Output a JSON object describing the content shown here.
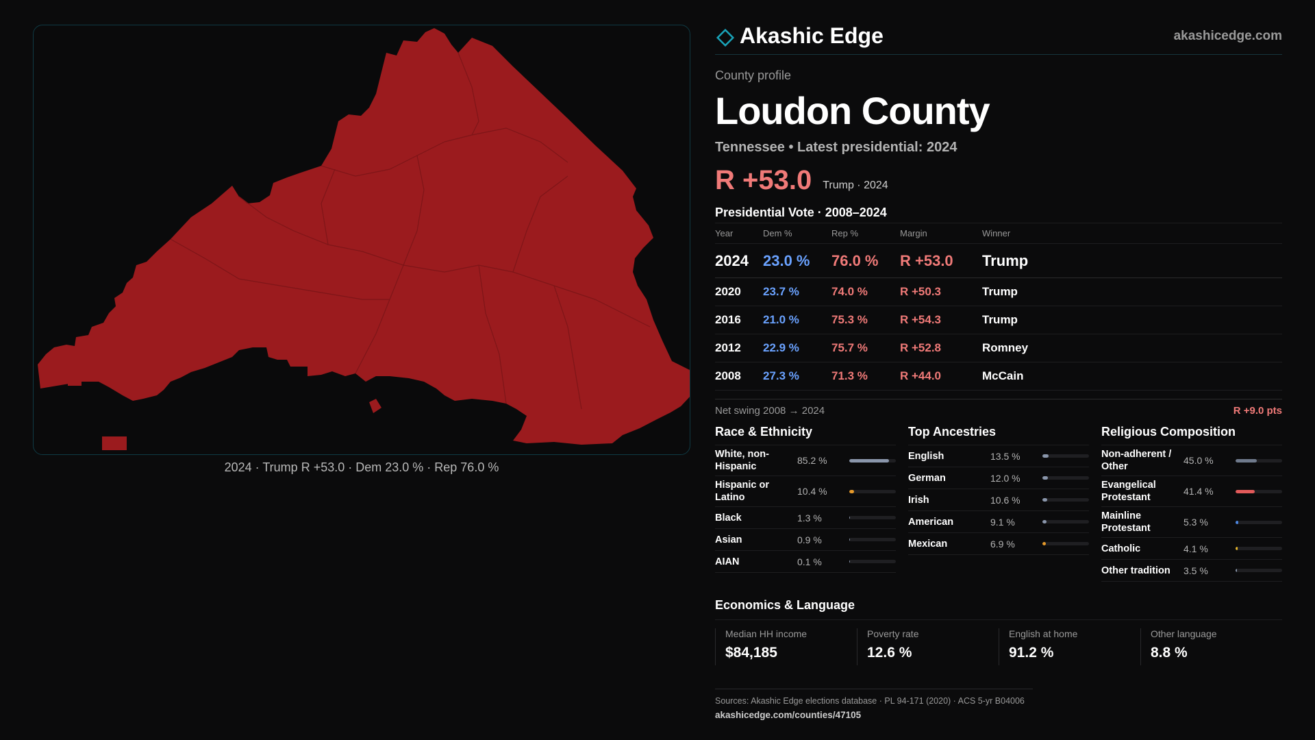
{
  "map": {
    "caption": "2024 · Trump R +53.0 · Dem 23.0 % · Rep 76.0 %",
    "fill_color": "#9b1b1e"
  },
  "brand": {
    "name": "Akashic Edge",
    "url": "akashicedge.com",
    "accent": "#19a3b8"
  },
  "profile": {
    "eyebrow": "County profile",
    "title": "Loudon County",
    "subtitle": "Tennessee • Latest presidential: 2024",
    "headline_margin": "R +53.0",
    "headline_meta": "Trump · 2024"
  },
  "votes": {
    "title": "Presidential Vote · 2008–2024",
    "headers": {
      "year": "Year",
      "dem": "Dem %",
      "rep": "Rep %",
      "margin": "Margin",
      "winner": "Winner"
    },
    "rows": [
      {
        "year": "2024",
        "dem": "23.0 %",
        "rep": "76.0 %",
        "margin": "R +53.0",
        "winner": "Trump"
      },
      {
        "year": "2020",
        "dem": "23.7 %",
        "rep": "74.0 %",
        "margin": "R +50.3",
        "winner": "Trump"
      },
      {
        "year": "2016",
        "dem": "21.0 %",
        "rep": "75.3 %",
        "margin": "R +54.3",
        "winner": "Trump"
      },
      {
        "year": "2012",
        "dem": "22.9 %",
        "rep": "75.7 %",
        "margin": "R +52.8",
        "winner": "Romney"
      },
      {
        "year": "2008",
        "dem": "27.3 %",
        "rep": "71.3 %",
        "margin": "R +44.0",
        "winner": "McCain"
      }
    ],
    "swing_label": "Net swing 2008 → 2024",
    "swing_value": "R +9.0 pts"
  },
  "race": {
    "title": "Race & Ethnicity",
    "items": [
      {
        "name": "White, non-Hispanic",
        "value": "85.2 %",
        "pct": 85.2,
        "color": "#8a96ab"
      },
      {
        "name": "Hispanic or Latino",
        "value": "10.4 %",
        "pct": 10.4,
        "color": "#e69a2a"
      },
      {
        "name": "Black",
        "value": "1.3 %",
        "pct": 1.3,
        "color": "#8a96ab"
      },
      {
        "name": "Asian",
        "value": "0.9 %",
        "pct": 0.9,
        "color": "#8a96ab"
      },
      {
        "name": "AIAN",
        "value": "0.1 %",
        "pct": 0.1,
        "color": "#8a96ab"
      }
    ]
  },
  "ancestry": {
    "title": "Top Ancestries",
    "items": [
      {
        "name": "English",
        "value": "13.5 %",
        "pct": 13.5,
        "color": "#8a96ab"
      },
      {
        "name": "German",
        "value": "12.0 %",
        "pct": 12.0,
        "color": "#8a96ab"
      },
      {
        "name": "Irish",
        "value": "10.6 %",
        "pct": 10.6,
        "color": "#8a96ab"
      },
      {
        "name": "American",
        "value": "9.1 %",
        "pct": 9.1,
        "color": "#8a96ab"
      },
      {
        "name": "Mexican",
        "value": "6.9 %",
        "pct": 6.9,
        "color": "#e69a2a"
      }
    ]
  },
  "religion": {
    "title": "Religious Composition",
    "items": [
      {
        "name": "Non-adherent / Other",
        "value": "45.0 %",
        "pct": 45.0,
        "color": "#6f7a8c"
      },
      {
        "name": "Evangelical Protestant",
        "value": "41.4 %",
        "pct": 41.4,
        "color": "#e25a5a"
      },
      {
        "name": "Mainline Protestant",
        "value": "5.3 %",
        "pct": 5.3,
        "color": "#4c86e0"
      },
      {
        "name": "Catholic",
        "value": "4.1 %",
        "pct": 4.1,
        "color": "#e6b62a"
      },
      {
        "name": "Other tradition",
        "value": "3.5 %",
        "pct": 3.5,
        "color": "#8a96ab"
      }
    ]
  },
  "economics": {
    "title": "Economics & Language",
    "items": [
      {
        "label": "Median HH income",
        "value": "$84,185"
      },
      {
        "label": "Poverty rate",
        "value": "12.6 %"
      },
      {
        "label": "English at home",
        "value": "91.2 %"
      },
      {
        "label": "Other language",
        "value": "8.8 %"
      }
    ]
  },
  "sources": {
    "text": "Sources: Akashic Edge elections database · PL 94-171 (2020) · ACS 5-yr B04006",
    "url": "akashicedge.com/counties/47105"
  }
}
